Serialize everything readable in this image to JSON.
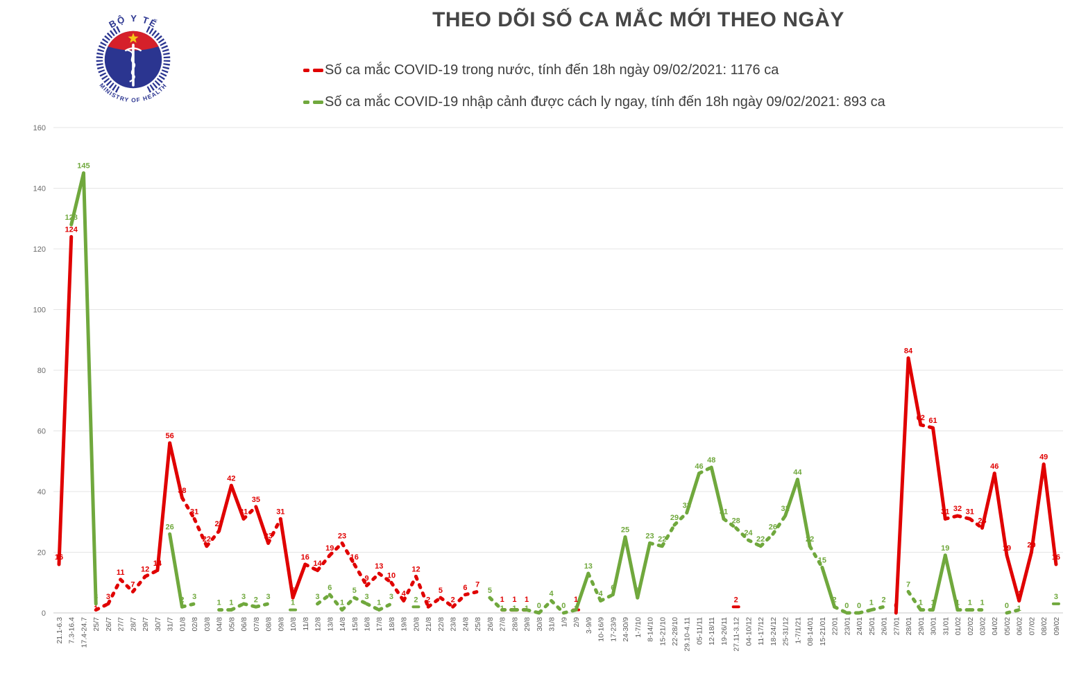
{
  "header": {
    "title": "THEO DÕI SỐ CA MẮC MỚI THEO NGÀY",
    "logo": {
      "top_text": "BỘ Y TẾ",
      "bottom_text": "MINISTRY OF HEALTH",
      "navy": "#2b3590",
      "red": "#d5202a",
      "star_yellow": "#f5c518"
    }
  },
  "legend": {
    "items": [
      {
        "label": "Số ca mắc COVID-19 trong nước, tính đến 18h ngày 09/02/2021: 1176 ca",
        "color": "#e00000"
      },
      {
        "label": "Số ca mắc COVID-19 nhập cảnh được cách ly ngay, tính đến 18h ngày 09/02/2021: 893 ca",
        "color": "#70a83d"
      }
    ]
  },
  "chart_data": {
    "type": "line",
    "title": "THEO DÕI SỐ CA MẮC MỚI THEO NGÀY",
    "xlabel": "",
    "ylabel": "",
    "ylim": [
      0,
      160
    ],
    "y_ticks": [
      0,
      20,
      40,
      60,
      80,
      100,
      120,
      140,
      160
    ],
    "grid": "horizontal",
    "legend_position": "top-left",
    "categories": [
      "21.1-6.3",
      "7.3-16.4",
      "17.4-24.7",
      "25/7",
      "26/7",
      "27/7",
      "28/7",
      "29/7",
      "30/7",
      "31/7",
      "01/8",
      "02/8",
      "03/8",
      "04/8",
      "05/8",
      "06/8",
      "07/8",
      "08/8",
      "09/8",
      "10/8",
      "11/8",
      "12/8",
      "13/8",
      "14/8",
      "15/8",
      "16/8",
      "17/8",
      "18/8",
      "19/8",
      "20/8",
      "21/8",
      "22/8",
      "23/8",
      "24/8",
      "25/8",
      "26/8",
      "27/8",
      "28/8",
      "29/8",
      "30/8",
      "31/8",
      "1/9",
      "2/9",
      "3-9/9",
      "10-16/9",
      "17-23/9",
      "24-30/9",
      "1-7/10",
      "8-14/10",
      "15-21/10",
      "22-28/10",
      "29.10-4.11",
      "05-11/11",
      "12-18/11",
      "19-26/11",
      "27.11-3.12",
      "04-10/12",
      "11-17/12",
      "18-24/12",
      "25-31/12",
      "1-7/1/21",
      "08-14/01",
      "15-21/01",
      "22/01",
      "23/01",
      "24/01",
      "25/01",
      "26/01",
      "27/01",
      "28/01",
      "29/01",
      "30/01",
      "31/01",
      "01/02",
      "02/02",
      "03/02",
      "04/02",
      "05/02",
      "06/02",
      "07/02",
      "08/02",
      "09/02"
    ],
    "series": [
      {
        "name": "Số ca mắc COVID-19 trong nước",
        "color": "#e00000",
        "total_label": "1176 ca",
        "values": [
          16,
          124,
          null,
          1,
          3,
          11,
          7,
          12,
          14,
          56,
          38,
          31,
          22,
          27,
          42,
          31,
          35,
          23,
          31,
          5,
          16,
          14,
          19,
          23,
          16,
          9,
          13,
          10,
          4,
          12,
          2,
          5,
          2,
          6,
          7,
          null,
          1,
          1,
          1,
          null,
          null,
          null,
          1,
          null,
          null,
          null,
          null,
          null,
          null,
          null,
          null,
          null,
          null,
          null,
          null,
          2,
          null,
          null,
          null,
          null,
          null,
          null,
          null,
          null,
          null,
          null,
          null,
          null,
          0,
          84,
          62,
          61,
          31,
          32,
          31,
          28,
          46,
          19,
          4,
          20,
          49,
          16
        ]
      },
      {
        "name": "Số ca mắc COVID-19 nhập cảnh được cách ly ngay",
        "color": "#70a83d",
        "total_label": "893 ca",
        "values": [
          null,
          128,
          145,
          3,
          null,
          null,
          null,
          null,
          null,
          26,
          2,
          3,
          null,
          1,
          1,
          3,
          2,
          3,
          null,
          1,
          null,
          3,
          6,
          1,
          5,
          3,
          1,
          3,
          null,
          2,
          null,
          null,
          null,
          null,
          null,
          5,
          1,
          1,
          1,
          0,
          4,
          0,
          1,
          13,
          4,
          6,
          25,
          5,
          23,
          22,
          29,
          33,
          46,
          48,
          31,
          28,
          24,
          22,
          26,
          32,
          44,
          22,
          15,
          2,
          0,
          0,
          1,
          2,
          null,
          7,
          1,
          1,
          19,
          1,
          1,
          1,
          null,
          0,
          1,
          null,
          null,
          3
        ]
      }
    ]
  }
}
